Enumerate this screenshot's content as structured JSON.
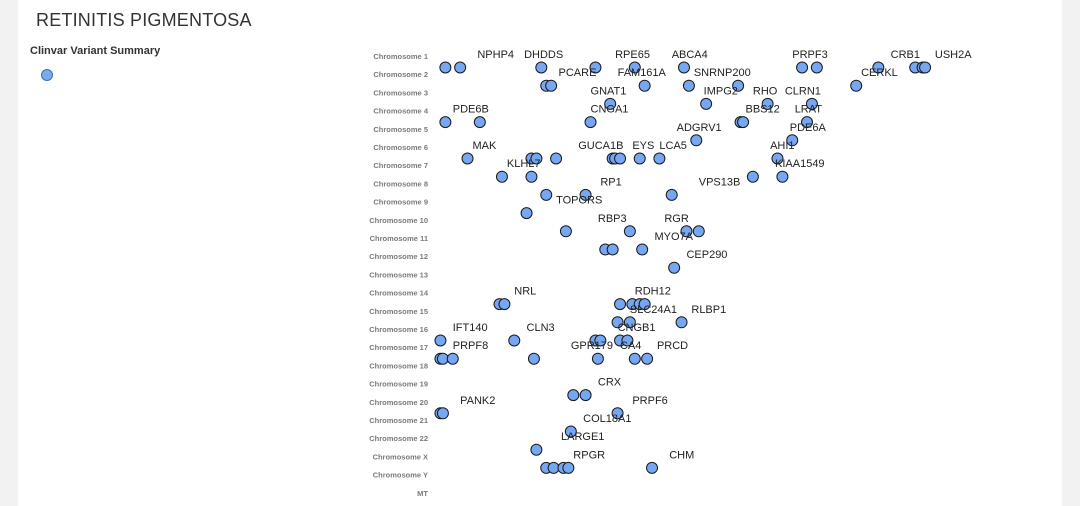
{
  "header": {
    "title": "RETINITIS PIGMENTOSA"
  },
  "legend": {
    "title": "Clinvar Variant Summary",
    "dot_color": "#76a7f2"
  },
  "chart_data": {
    "type": "scatter",
    "title": "RETINITIS PIGMENTOSA",
    "categories": [
      "Chromosome 1",
      "Chromosome 2",
      "Chromosome 3",
      "Chromosome 4",
      "Chromosome 5",
      "Chromosome 6",
      "Chromosome 7",
      "Chromosome 8",
      "Chromosome 9",
      "Chromosome 10",
      "Chromosome 11",
      "Chromosome 12",
      "Chromosome 13",
      "Chromosome 14",
      "Chromosome 15",
      "Chromosome 16",
      "Chromosome 17",
      "Chromosome 18",
      "Chromosome 19",
      "Chromosome 20",
      "Chromosome 21",
      "Chromosome 22",
      "Chromosome X",
      "Chromosome Y",
      "MT"
    ],
    "xlim": [
      0,
      100
    ],
    "point_color": "#76a7f2",
    "points": [
      {
        "c": 0,
        "x": 1.5
      },
      {
        "c": 0,
        "x": 4.5
      },
      {
        "c": 0,
        "x": 21
      },
      {
        "c": 0,
        "x": 32
      },
      {
        "c": 0,
        "x": 40
      },
      {
        "c": 0,
        "x": 50
      },
      {
        "c": 0,
        "x": 74
      },
      {
        "c": 0,
        "x": 77
      },
      {
        "c": 0,
        "x": 89.5
      },
      {
        "c": 0,
        "x": 97
      },
      {
        "c": 0,
        "x": 98.5
      },
      {
        "c": 0,
        "x": 99
      },
      {
        "c": 1,
        "x": 22
      },
      {
        "c": 1,
        "x": 23
      },
      {
        "c": 1,
        "x": 42
      },
      {
        "c": 1,
        "x": 51
      },
      {
        "c": 1,
        "x": 61
      },
      {
        "c": 1,
        "x": 85
      },
      {
        "c": 2,
        "x": 35
      },
      {
        "c": 2,
        "x": 54.5
      },
      {
        "c": 2,
        "x": 67
      },
      {
        "c": 2,
        "x": 76
      },
      {
        "c": 3,
        "x": 1.5
      },
      {
        "c": 3,
        "x": 8.5
      },
      {
        "c": 3,
        "x": 31
      },
      {
        "c": 3,
        "x": 61.5
      },
      {
        "c": 3,
        "x": 62
      },
      {
        "c": 3,
        "x": 75
      },
      {
        "c": 4,
        "x": 52.5
      },
      {
        "c": 4,
        "x": 72
      },
      {
        "c": 5,
        "x": 6
      },
      {
        "c": 5,
        "x": 19
      },
      {
        "c": 5,
        "x": 20
      },
      {
        "c": 5,
        "x": 24
      },
      {
        "c": 5,
        "x": 35.5
      },
      {
        "c": 5,
        "x": 36
      },
      {
        "c": 5,
        "x": 37
      },
      {
        "c": 5,
        "x": 41
      },
      {
        "c": 5,
        "x": 45
      },
      {
        "c": 5,
        "x": 69
      },
      {
        "c": 6,
        "x": 13
      },
      {
        "c": 6,
        "x": 19
      },
      {
        "c": 6,
        "x": 64
      },
      {
        "c": 6,
        "x": 70
      },
      {
        "c": 7,
        "x": 22
      },
      {
        "c": 7,
        "x": 30
      },
      {
        "c": 7,
        "x": 47.5
      },
      {
        "c": 8,
        "x": 18
      },
      {
        "c": 9,
        "x": 26
      },
      {
        "c": 9,
        "x": 39
      },
      {
        "c": 9,
        "x": 50.5
      },
      {
        "c": 9,
        "x": 53
      },
      {
        "c": 10,
        "x": 34
      },
      {
        "c": 10,
        "x": 35.5
      },
      {
        "c": 10,
        "x": 41.5
      },
      {
        "c": 11,
        "x": 48
      },
      {
        "c": 13,
        "x": 12.5
      },
      {
        "c": 13,
        "x": 13.5
      },
      {
        "c": 13,
        "x": 37
      },
      {
        "c": 13,
        "x": 39.5
      },
      {
        "c": 13,
        "x": 41
      },
      {
        "c": 13,
        "x": 42
      },
      {
        "c": 14,
        "x": 36.5
      },
      {
        "c": 14,
        "x": 39
      },
      {
        "c": 14,
        "x": 49.5
      },
      {
        "c": 15,
        "x": 0.5
      },
      {
        "c": 15,
        "x": 15.5
      },
      {
        "c": 15,
        "x": 32
      },
      {
        "c": 15,
        "x": 33
      },
      {
        "c": 15,
        "x": 37
      },
      {
        "c": 15,
        "x": 38.5
      },
      {
        "c": 16,
        "x": 0.5
      },
      {
        "c": 16,
        "x": 1
      },
      {
        "c": 16,
        "x": 3
      },
      {
        "c": 16,
        "x": 19.5
      },
      {
        "c": 16,
        "x": 32.5
      },
      {
        "c": 16,
        "x": 40
      },
      {
        "c": 16,
        "x": 42.5
      },
      {
        "c": 18,
        "x": 27.5
      },
      {
        "c": 18,
        "x": 30
      },
      {
        "c": 19,
        "x": 0.5
      },
      {
        "c": 19,
        "x": 1
      },
      {
        "c": 19,
        "x": 36.5
      },
      {
        "c": 20,
        "x": 27
      },
      {
        "c": 21,
        "x": 20
      },
      {
        "c": 22,
        "x": 22
      },
      {
        "c": 22,
        "x": 23.5
      },
      {
        "c": 22,
        "x": 25.5
      },
      {
        "c": 22,
        "x": 26.5
      },
      {
        "c": 22,
        "x": 43.5
      }
    ],
    "labels": [
      {
        "c": 0,
        "x": 8,
        "text": "NPHP4"
      },
      {
        "c": 0,
        "x": 17.5,
        "text": "DHDDS"
      },
      {
        "c": 0,
        "x": 36,
        "text": "RPE65"
      },
      {
        "c": 0,
        "x": 47.5,
        "text": "ABCA4"
      },
      {
        "c": 0,
        "x": 72,
        "text": "PRPF3"
      },
      {
        "c": 0,
        "x": 92,
        "text": "CRB1"
      },
      {
        "c": 0,
        "x": 101,
        "text": "USH2A"
      },
      {
        "c": 1,
        "x": 24.5,
        "text": "PCARE"
      },
      {
        "c": 1,
        "x": 36.5,
        "text": "FAM161A"
      },
      {
        "c": 1,
        "x": 52,
        "text": "SNRNP200"
      },
      {
        "c": 1,
        "x": 86,
        "text": "CERKL"
      },
      {
        "c": 2,
        "x": 31,
        "text": "GNAT1"
      },
      {
        "c": 2,
        "x": 54,
        "text": "IMPG2"
      },
      {
        "c": 2,
        "x": 64,
        "text": "RHO"
      },
      {
        "c": 2,
        "x": 70.5,
        "text": "CLRN1"
      },
      {
        "c": 3,
        "x": 3,
        "text": "PDE6B"
      },
      {
        "c": 3,
        "x": 31,
        "text": "CNGA1"
      },
      {
        "c": 3,
        "x": 62.5,
        "text": "BBS12"
      },
      {
        "c": 3,
        "x": 72.5,
        "text": "LRAT"
      },
      {
        "c": 4,
        "x": 48.5,
        "text": "ADGRV1"
      },
      {
        "c": 4,
        "x": 71.5,
        "text": "PDE6A"
      },
      {
        "c": 5,
        "x": 7,
        "text": "MAK"
      },
      {
        "c": 5,
        "x": 28.5,
        "text": "GUCA1B"
      },
      {
        "c": 5,
        "x": 39.5,
        "text": "EYS"
      },
      {
        "c": 5,
        "x": 45,
        "text": "LCA5"
      },
      {
        "c": 5,
        "x": 67.5,
        "text": "AHI1"
      },
      {
        "c": 6,
        "x": 14,
        "text": "KLHL7"
      },
      {
        "c": 6,
        "x": 68.5,
        "text": "KIAA1549"
      },
      {
        "c": 7,
        "x": 33,
        "text": "RP1"
      },
      {
        "c": 7,
        "x": 53,
        "text": "VPS13B"
      },
      {
        "c": 8,
        "x": 24,
        "text": "TOPORS"
      },
      {
        "c": 9,
        "x": 32.5,
        "text": "RBP3"
      },
      {
        "c": 9,
        "x": 46,
        "text": "RGR"
      },
      {
        "c": 10,
        "x": 44,
        "text": "MYO7A"
      },
      {
        "c": 11,
        "x": 50.5,
        "text": "CEP290"
      },
      {
        "c": 13,
        "x": 15.5,
        "text": "NRL"
      },
      {
        "c": 13,
        "x": 40,
        "text": "RDH12"
      },
      {
        "c": 14,
        "x": 39,
        "text": "SLC24A1"
      },
      {
        "c": 14,
        "x": 51.5,
        "text": "RLBP1"
      },
      {
        "c": 15,
        "x": 3,
        "text": "IFT140"
      },
      {
        "c": 15,
        "x": 18,
        "text": "CLN3"
      },
      {
        "c": 15,
        "x": 36.5,
        "text": "CNGB1"
      },
      {
        "c": 16,
        "x": 3,
        "text": "PRPF8"
      },
      {
        "c": 16,
        "x": 27,
        "text": "GPR179"
      },
      {
        "c": 16,
        "x": 37,
        "text": "CA4"
      },
      {
        "c": 16,
        "x": 44.5,
        "text": "PRCD"
      },
      {
        "c": 18,
        "x": 32.5,
        "text": "CRX"
      },
      {
        "c": 19,
        "x": 4.5,
        "text": "PANK2"
      },
      {
        "c": 19,
        "x": 39.5,
        "text": "PRPF6"
      },
      {
        "c": 20,
        "x": 29.5,
        "text": "COL18A1"
      },
      {
        "c": 21,
        "x": 25,
        "text": "LARGE1"
      },
      {
        "c": 22,
        "x": 27.5,
        "text": "RPGR"
      },
      {
        "c": 22,
        "x": 47,
        "text": "CHM"
      }
    ]
  }
}
